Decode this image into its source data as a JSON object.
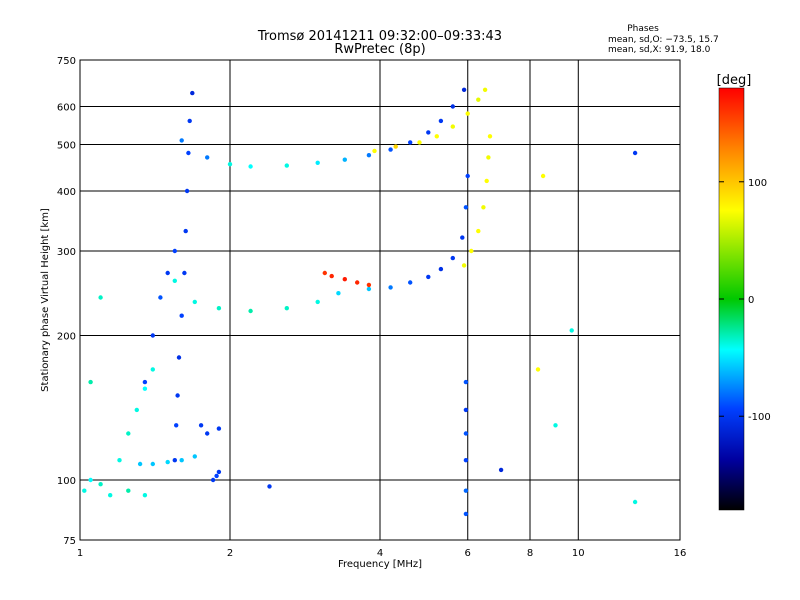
{
  "chart_data": {
    "type": "scatter",
    "title": "Tromsø 20141211 09:32:00–09:33:43",
    "subtitle": "RwPretec (8p)",
    "xlabel": "Frequency [MHz]",
    "ylabel": "Stationary phase Virtual Height [km]",
    "x_scale": "log",
    "y_scale": "log",
    "xlim": [
      1,
      16
    ],
    "ylim": [
      75,
      750
    ],
    "x_ticks": [
      1,
      2,
      4,
      6,
      8,
      10,
      16
    ],
    "y_ticks": [
      75,
      100,
      200,
      300,
      400,
      500,
      600,
      750
    ],
    "x_grid": [
      2,
      4,
      6,
      8,
      10
    ],
    "y_grid": [
      100,
      200,
      300,
      400,
      500,
      600
    ],
    "grid": true,
    "phase_info": {
      "title": "Phases",
      "line1": "mean, sd,O: −73.5, 15.7",
      "line2": "mean, sd,X:  91.9, 18.0"
    },
    "colorbar": {
      "label": "[deg]",
      "min": -180,
      "max": 180,
      "ticks": [
        100,
        0,
        -100
      ],
      "colors": [
        "#ff0000",
        "#ff8000",
        "#ffff00",
        "#00c800",
        "#00ffff",
        "#0040ff",
        "#0000a0",
        "#000000"
      ]
    },
    "traces": [
      {
        "x": [
          1.6,
          1.8,
          2.0,
          2.2,
          2.6,
          3.0,
          3.4,
          3.8,
          4.2,
          4.6,
          5.0,
          5.3,
          5.6,
          5.9
        ],
        "y": [
          510,
          470,
          455,
          450,
          452,
          458,
          465,
          475,
          488,
          505,
          530,
          560,
          600,
          650
        ],
        "phase": [
          -80,
          -80,
          -40,
          -45,
          -40,
          -50,
          -65,
          -80,
          -90,
          -95,
          -100,
          -100,
          -105,
          -110
        ]
      },
      {
        "x": [
          3.9,
          4.3,
          4.8,
          5.2,
          5.6,
          6.0,
          6.3,
          6.5
        ],
        "y": [
          485,
          495,
          505,
          520,
          545,
          580,
          620,
          650
        ],
        "phase": [
          100,
          110,
          100,
          100,
          95,
          100,
          90,
          95
        ]
      },
      {
        "x": [
          1.55,
          1.7,
          1.9,
          2.2,
          2.6,
          3.0,
          3.3,
          3.8,
          4.2,
          4.6,
          5.0,
          5.3,
          5.6,
          5.85,
          5.95,
          6.0
        ],
        "y": [
          260,
          235,
          228,
          225,
          228,
          235,
          245,
          250,
          252,
          258,
          265,
          275,
          290,
          320,
          370,
          430
        ],
        "phase": [
          -40,
          -40,
          -35,
          -30,
          -35,
          -40,
          -55,
          -60,
          -80,
          -90,
          -100,
          -105,
          -100,
          -100,
          -90,
          -95
        ]
      },
      {
        "x": [
          5.9,
          6.1,
          6.3,
          6.45,
          6.55,
          6.6,
          6.65
        ],
        "y": [
          280,
          300,
          330,
          370,
          420,
          470,
          520
        ],
        "phase": [
          95,
          100,
          100,
          95,
          100,
          95,
          100
        ]
      },
      {
        "x": [
          1.55,
          1.56,
          1.57,
          1.58,
          1.6,
          1.62,
          1.63,
          1.64,
          1.65,
          1.66,
          1.68
        ],
        "y": [
          110,
          130,
          150,
          180,
          220,
          270,
          330,
          400,
          480,
          560,
          640
        ],
        "phase": [
          -100,
          -95,
          -100,
          -105,
          -95,
          -100,
          -100,
          -100,
          -95,
          -100,
          -110
        ]
      },
      {
        "x": [
          1.35,
          1.4,
          1.45,
          1.5,
          1.55
        ],
        "y": [
          160,
          200,
          240,
          270,
          300
        ],
        "phase": [
          -95,
          -100,
          -90,
          -100,
          -95
        ]
      },
      {
        "x": [
          1.2,
          1.25,
          1.3,
          1.35,
          1.4
        ],
        "y": [
          110,
          125,
          140,
          155,
          170
        ],
        "phase": [
          -40,
          -35,
          -40,
          -45,
          -40
        ]
      },
      {
        "x": [
          1.32,
          1.4,
          1.5,
          1.6,
          1.7
        ],
        "y": [
          108,
          108,
          109,
          110,
          112
        ],
        "phase": [
          -60,
          -60,
          -55,
          -60,
          -60
        ]
      },
      {
        "x": [
          3.1,
          3.2,
          3.4,
          3.6,
          3.8
        ],
        "y": [
          270,
          266,
          262,
          258,
          255
        ],
        "phase": [
          160,
          165,
          170,
          165,
          160
        ]
      },
      {
        "x": [
          5.95,
          5.95,
          5.95,
          5.95,
          5.95,
          5.95
        ],
        "y": [
          85,
          95,
          110,
          125,
          140,
          160
        ],
        "phase": [
          -90,
          -85,
          -95,
          -90,
          -100,
          -90
        ]
      },
      {
        "x": [
          1.85,
          1.88,
          1.9,
          2.4,
          1.75,
          1.8,
          1.9
        ],
        "y": [
          100,
          102,
          104,
          97,
          130,
          125,
          128
        ],
        "phase": [
          -100,
          -95,
          -100,
          -100,
          -100,
          -100,
          -100
        ]
      },
      {
        "x": [
          1.02,
          1.05,
          1.1,
          1.15,
          1.25,
          1.35,
          1.05,
          1.1,
          7.0,
          8.3,
          9.7,
          13.0,
          13.0,
          9.0,
          8.5
        ],
        "y": [
          95,
          100,
          98,
          93,
          95,
          93,
          160,
          240,
          105,
          170,
          205,
          480,
          90,
          130,
          430
        ],
        "phase": [
          -40,
          -45,
          -35,
          -40,
          -30,
          -40,
          -30,
          -35,
          -110,
          100,
          -40,
          -100,
          -40,
          -40,
          100
        ]
      }
    ]
  }
}
